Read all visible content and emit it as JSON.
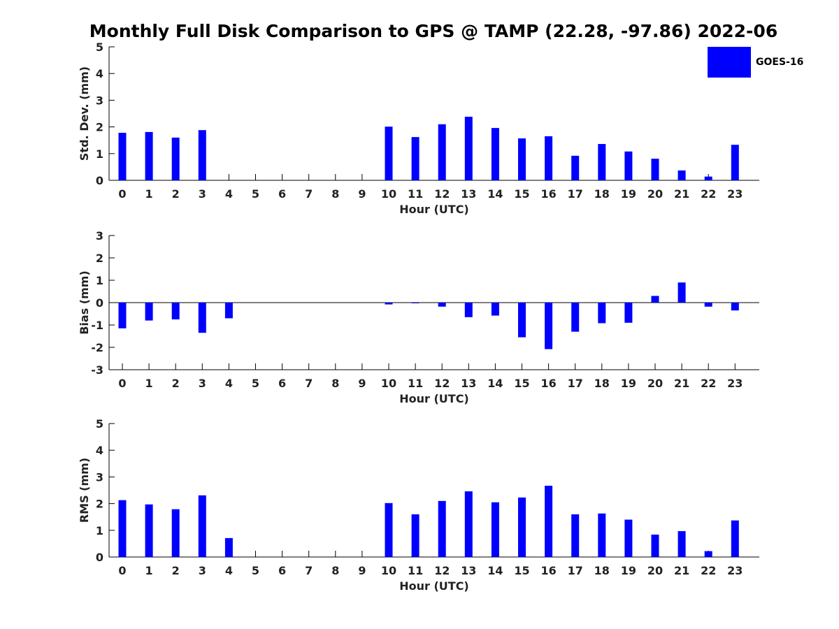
{
  "figure": {
    "title": "Monthly Full Disk Comparison to GPS @ TAMP (22.28, -97.86) 2022-06"
  },
  "legend": {
    "label": "GOES-16",
    "color": "#0000ff"
  },
  "chart_data": [
    {
      "type": "bar",
      "title": "Monthly Full Disk Comparison to GPS @ TAMP (22.28, -97.86) 2022-06",
      "xlabel": "Hour (UTC)",
      "ylabel": "Std. Dev. (mm)",
      "ylim": [
        0,
        5
      ],
      "yticks": [
        0,
        1,
        2,
        3,
        4,
        5
      ],
      "categories": [
        0,
        1,
        2,
        3,
        4,
        5,
        6,
        7,
        8,
        9,
        10,
        11,
        12,
        13,
        14,
        15,
        16,
        17,
        18,
        19,
        20,
        21,
        22,
        23
      ],
      "series": [
        {
          "name": "GOES-16",
          "color": "#0000ff",
          "values": [
            1.78,
            1.81,
            1.6,
            1.88,
            0,
            0,
            0,
            0,
            0,
            0,
            2.01,
            1.62,
            2.1,
            2.38,
            1.96,
            1.57,
            1.65,
            0.92,
            1.36,
            1.08,
            0.81,
            0.37,
            0.14,
            1.33
          ]
        }
      ],
      "legend": "top-right",
      "grid": false
    },
    {
      "type": "bar",
      "xlabel": "Hour (UTC)",
      "ylabel": "Bias (mm)",
      "ylim": [
        -3,
        3
      ],
      "yticks": [
        -3,
        -2,
        -1,
        0,
        1,
        2,
        3
      ],
      "categories": [
        0,
        1,
        2,
        3,
        4,
        5,
        6,
        7,
        8,
        9,
        10,
        11,
        12,
        13,
        14,
        15,
        16,
        17,
        18,
        19,
        20,
        21,
        22,
        23
      ],
      "series": [
        {
          "name": "GOES-16",
          "color": "#0000ff",
          "values": [
            -1.15,
            -0.8,
            -0.75,
            -1.35,
            -0.7,
            0,
            0,
            0,
            0,
            0,
            -0.08,
            -0.03,
            -0.18,
            -0.65,
            -0.58,
            -1.55,
            -2.08,
            -1.3,
            -0.92,
            -0.9,
            0.3,
            0.9,
            -0.18,
            -0.35
          ]
        }
      ],
      "grid": false
    },
    {
      "type": "bar",
      "xlabel": "Hour (UTC)",
      "ylabel": "RMS (mm)",
      "ylim": [
        0,
        5
      ],
      "yticks": [
        0,
        1,
        2,
        3,
        4,
        5
      ],
      "categories": [
        0,
        1,
        2,
        3,
        4,
        5,
        6,
        7,
        8,
        9,
        10,
        11,
        12,
        13,
        14,
        15,
        16,
        17,
        18,
        19,
        20,
        21,
        22,
        23
      ],
      "series": [
        {
          "name": "GOES-16",
          "color": "#0000ff",
          "values": [
            2.13,
            1.97,
            1.79,
            2.31,
            0.71,
            0,
            0,
            0,
            0,
            0,
            2.02,
            1.6,
            2.1,
            2.46,
            2.05,
            2.23,
            2.67,
            1.6,
            1.63,
            1.4,
            0.84,
            0.97,
            0.22,
            1.37
          ]
        }
      ],
      "grid": false
    }
  ]
}
